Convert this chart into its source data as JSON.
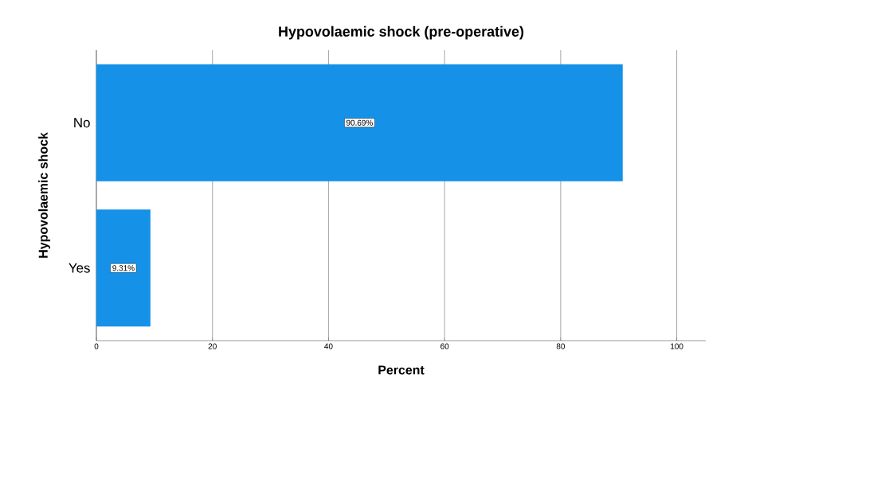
{
  "chart_data": {
    "type": "bar",
    "orientation": "horizontal",
    "title": "Hypovolaemic shock (pre-operative)",
    "xlabel": "Percent",
    "ylabel": "Hypovolaemic shock",
    "categories": [
      "No",
      "Yes"
    ],
    "values": [
      90.69,
      9.31
    ],
    "value_labels": [
      "90.69%",
      "9.31%"
    ],
    "color": "#1591e8",
    "xlim": [
      0,
      105
    ],
    "xticks": [
      0,
      20,
      40,
      60,
      80,
      100
    ],
    "grid": "x"
  }
}
